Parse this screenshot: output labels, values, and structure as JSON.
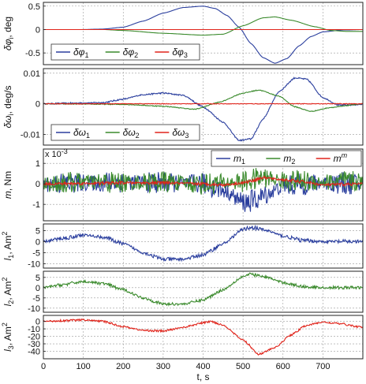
{
  "figure": {
    "xlabel": "t, s",
    "xlim": [
      0,
      800
    ],
    "xticks": [
      0,
      100,
      200,
      300,
      400,
      500,
      600,
      700
    ],
    "colors": {
      "blue": "#2b3f9e",
      "green": "#3a8a2c",
      "red": "#e0241b",
      "grid": "#9a9a9a"
    }
  },
  "chart_data": [
    {
      "type": "line",
      "ylabel_main": "δφ",
      "ylabel_sub": "i",
      "ylabel_unit": ", deg",
      "ylim": [
        -0.75,
        0.58
      ],
      "yticks": [
        0.5,
        0,
        -0.5
      ],
      "grid": true,
      "legend_position": "bottom-left",
      "series": [
        {
          "name": "δφ",
          "sub": "1",
          "color": "#2b3f9e",
          "points": [
            [
              0,
              0
            ],
            [
              100,
              0
            ],
            [
              150,
              0.01
            ],
            [
              200,
              0.05
            ],
            [
              250,
              0.18
            ],
            [
              300,
              0.35
            ],
            [
              350,
              0.47
            ],
            [
              400,
              0.5
            ],
            [
              430,
              0.45
            ],
            [
              460,
              0.3
            ],
            [
              490,
              0.05
            ],
            [
              520,
              -0.3
            ],
            [
              550,
              -0.6
            ],
            [
              580,
              -0.72
            ],
            [
              610,
              -0.62
            ],
            [
              640,
              -0.35
            ],
            [
              670,
              -0.15
            ],
            [
              700,
              -0.05
            ],
            [
              750,
              -0.01
            ],
            [
              800,
              0
            ]
          ]
        },
        {
          "name": "δφ",
          "sub": "2",
          "color": "#3a8a2c",
          "points": [
            [
              0,
              0
            ],
            [
              150,
              0
            ],
            [
              200,
              -0.02
            ],
            [
              300,
              -0.08
            ],
            [
              400,
              -0.12
            ],
            [
              450,
              -0.1
            ],
            [
              500,
              0.08
            ],
            [
              550,
              0.25
            ],
            [
              580,
              0.27
            ],
            [
              620,
              0.2
            ],
            [
              680,
              0.06
            ],
            [
              720,
              -0.02
            ],
            [
              760,
              -0.04
            ],
            [
              800,
              -0.04
            ]
          ]
        },
        {
          "name": "δφ",
          "sub": "3",
          "color": "#e0241b",
          "points": [
            [
              0,
              0
            ],
            [
              800,
              0
            ]
          ]
        }
      ]
    },
    {
      "type": "line",
      "ylabel_main": "δω",
      "ylabel_sub": "i",
      "ylabel_unit": ", deg/s",
      "ylim": [
        -0.0135,
        0.0115
      ],
      "yticks": [
        0.01,
        0,
        -0.01
      ],
      "grid": true,
      "legend_position": "bottom-left",
      "series": [
        {
          "name": "δω",
          "sub": "1",
          "color": "#2b3f9e",
          "points": [
            [
              0,
              0
            ],
            [
              150,
              0.0004
            ],
            [
              200,
              0.0015
            ],
            [
              250,
              0.003
            ],
            [
              300,
              0.0035
            ],
            [
              350,
              0.0028
            ],
            [
              400,
              -0.001
            ],
            [
              450,
              -0.006
            ],
            [
              490,
              -0.012
            ],
            [
              520,
              -0.0115
            ],
            [
              550,
              -0.005
            ],
            [
              590,
              0.004
            ],
            [
              630,
              0.0085
            ],
            [
              660,
              0.008
            ],
            [
              700,
              0.002
            ],
            [
              740,
              -0.0005
            ],
            [
              800,
              -0.0002
            ]
          ]
        },
        {
          "name": "δω",
          "sub": "2",
          "color": "#3a8a2c",
          "points": [
            [
              0,
              0
            ],
            [
              200,
              -0.0002
            ],
            [
              300,
              -0.0008
            ],
            [
              380,
              -0.0018
            ],
            [
              440,
              0.0005
            ],
            [
              500,
              0.0035
            ],
            [
              540,
              0.0045
            ],
            [
              590,
              0.0025
            ],
            [
              630,
              -0.001
            ],
            [
              670,
              -0.0025
            ],
            [
              720,
              -0.0012
            ],
            [
              800,
              0
            ]
          ]
        },
        {
          "name": "δω",
          "sub": "3",
          "color": "#e0241b",
          "points": [
            [
              0,
              0
            ],
            [
              800,
              0
            ]
          ]
        }
      ]
    },
    {
      "type": "line",
      "ylabel_main": "m",
      "ylabel_unit": ", Nm",
      "exponent_label": "x 10",
      "exponent_power": "-3",
      "ylim": [
        -1.8,
        1.7
      ],
      "yticks": [
        1,
        0,
        -1
      ],
      "grid": true,
      "legend_position": "top-right",
      "series": [
        {
          "name": "m",
          "sub": "1",
          "color": "#2b3f9e",
          "points": [
            [
              0,
              0
            ],
            [
              100,
              0.05
            ],
            [
              200,
              0.1
            ],
            [
              300,
              0.05
            ],
            [
              400,
              0
            ],
            [
              450,
              -0.3
            ],
            [
              500,
              -0.9
            ],
            [
              530,
              -0.8
            ],
            [
              560,
              -0.5
            ],
            [
              600,
              -0.1
            ],
            [
              700,
              0.05
            ],
            [
              800,
              0
            ]
          ]
        },
        {
          "name": "m",
          "sub": "2",
          "color": "#3a8a2c",
          "points": [
            [
              0,
              0
            ],
            [
              100,
              0.1
            ],
            [
              200,
              0.05
            ],
            [
              300,
              0.1
            ],
            [
              400,
              0
            ],
            [
              500,
              0.1
            ],
            [
              550,
              0.3
            ],
            [
              600,
              0.15
            ],
            [
              700,
              0.1
            ],
            [
              800,
              0.1
            ]
          ]
        },
        {
          "name": "m",
          "sup": "m",
          "color": "#e0241b",
          "points": [
            [
              0,
              0
            ],
            [
              100,
              0.02
            ],
            [
              200,
              0.05
            ],
            [
              300,
              0.05
            ],
            [
              400,
              0
            ],
            [
              450,
              -0.05
            ],
            [
              500,
              0.05
            ],
            [
              550,
              0.3
            ],
            [
              600,
              0.2
            ],
            [
              650,
              0.1
            ],
            [
              700,
              -0.05
            ],
            [
              800,
              0
            ]
          ]
        }
      ]
    },
    {
      "type": "line",
      "ylabel_main": "l",
      "ylabel_sub": "1",
      "ylabel_unit": ", Am",
      "ylabel_sup": "2",
      "ylim": [
        -12,
        8
      ],
      "yticks": [
        5,
        0,
        -5,
        -10
      ],
      "grid": true,
      "series": [
        {
          "name": "l1",
          "color": "#2b3f9e",
          "points": [
            [
              0,
              0
            ],
            [
              50,
              1.5
            ],
            [
              100,
              3
            ],
            [
              150,
              2
            ],
            [
              200,
              -1
            ],
            [
              250,
              -5
            ],
            [
              300,
              -8
            ],
            [
              350,
              -8
            ],
            [
              400,
              -6
            ],
            [
              450,
              -1
            ],
            [
              500,
              5.5
            ],
            [
              520,
              6.5
            ],
            [
              560,
              5
            ],
            [
              600,
              2.5
            ],
            [
              650,
              0.5
            ],
            [
              700,
              0
            ],
            [
              800,
              0
            ]
          ]
        }
      ]
    },
    {
      "type": "line",
      "ylabel_main": "l",
      "ylabel_sub": "2",
      "ylabel_unit": ", Am",
      "ylabel_sup": "2",
      "ylim": [
        -12,
        8
      ],
      "yticks": [
        5,
        0,
        -5,
        -10
      ],
      "grid": true,
      "series": [
        {
          "name": "l2",
          "color": "#3a8a2c",
          "points": [
            [
              0,
              0
            ],
            [
              50,
              1.5
            ],
            [
              100,
              3
            ],
            [
              150,
              2
            ],
            [
              200,
              -1
            ],
            [
              250,
              -5
            ],
            [
              300,
              -8
            ],
            [
              350,
              -8
            ],
            [
              400,
              -6
            ],
            [
              450,
              -1
            ],
            [
              500,
              5.5
            ],
            [
              520,
              6.5
            ],
            [
              560,
              5
            ],
            [
              600,
              2.5
            ],
            [
              650,
              0.5
            ],
            [
              700,
              0
            ],
            [
              800,
              0
            ]
          ]
        }
      ]
    },
    {
      "type": "line",
      "ylabel_main": "l",
      "ylabel_sub": "3",
      "ylabel_unit": ", Am",
      "ylabel_sup": "2",
      "ylim": [
        -50,
        8
      ],
      "yticks": [
        0,
        -10,
        -20,
        -30,
        -40
      ],
      "grid": true,
      "series": [
        {
          "name": "l3",
          "color": "#e0241b",
          "points": [
            [
              0,
              0
            ],
            [
              50,
              1
            ],
            [
              100,
              2
            ],
            [
              150,
              0
            ],
            [
              200,
              -7
            ],
            [
              250,
              -12
            ],
            [
              300,
              -13
            ],
            [
              350,
              -8
            ],
            [
              400,
              -2
            ],
            [
              420,
              0
            ],
            [
              450,
              -5
            ],
            [
              500,
              -25
            ],
            [
              540,
              -44
            ],
            [
              580,
              -35
            ],
            [
              620,
              -18
            ],
            [
              660,
              -5
            ],
            [
              700,
              -1
            ],
            [
              740,
              -3
            ],
            [
              800,
              -8
            ]
          ]
        }
      ]
    }
  ]
}
